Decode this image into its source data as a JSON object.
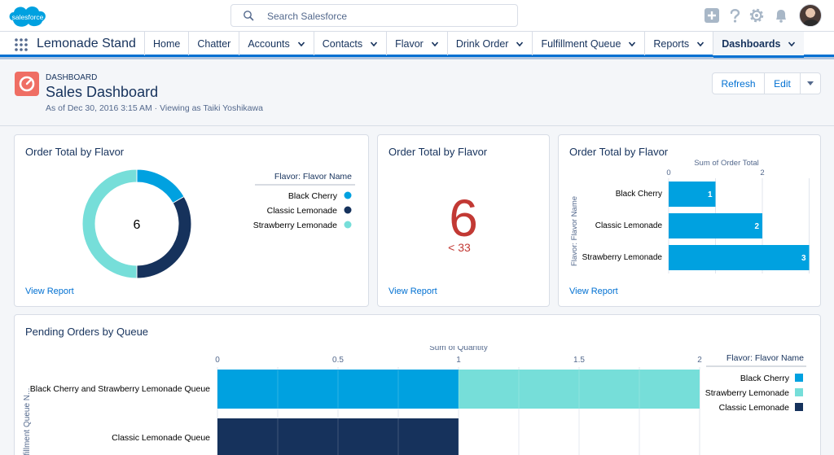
{
  "global_header": {
    "logo_text": "salesforce",
    "search_placeholder": "Search Salesforce"
  },
  "nav": {
    "app_name": "Lemonade Stand",
    "items": [
      {
        "label": "Home",
        "has_menu": false
      },
      {
        "label": "Chatter",
        "has_menu": false
      },
      {
        "label": "Accounts",
        "has_menu": true
      },
      {
        "label": "Contacts",
        "has_menu": true
      },
      {
        "label": "Flavor",
        "has_menu": true
      },
      {
        "label": "Drink Order",
        "has_menu": true
      },
      {
        "label": "Fulfillment Queue",
        "has_menu": true
      },
      {
        "label": "Reports",
        "has_menu": true
      },
      {
        "label": "Dashboards",
        "has_menu": true,
        "active": true
      }
    ]
  },
  "dashboard": {
    "kicker": "DASHBOARD",
    "title": "Sales Dashboard",
    "subtitle": "As of Dec 30, 2016 3:15 AM · Viewing as Taiki Yoshikawa",
    "buttons": {
      "refresh": "Refresh",
      "edit": "Edit"
    }
  },
  "cards": {
    "donut": {
      "title": "Order Total by Flavor",
      "view_report": "View Report"
    },
    "metric": {
      "title": "Order Total by Flavor",
      "view_report": "View Report",
      "value": "6",
      "sub": "< 33"
    },
    "hbar": {
      "title": "Order Total by Flavor",
      "view_report": "View Report"
    },
    "stacked": {
      "title": "Pending Orders by Queue"
    }
  },
  "colors": {
    "black_cherry": "#00a1e0",
    "classic_lemonade": "#16325c",
    "strawberry_lemonade": "#76ded9",
    "metric_red": "#c23934",
    "link": "#0070d2"
  },
  "chart_data": [
    {
      "type": "pie",
      "title": "Order Total by Flavor",
      "center_label": "6",
      "legend_title": "Flavor: Flavor Name",
      "categories": [
        "Black Cherry",
        "Classic Lemonade",
        "Strawberry Lemonade"
      ],
      "values": [
        1,
        2,
        3
      ]
    },
    {
      "type": "bar",
      "orientation": "horizontal",
      "title": "Order Total by Flavor",
      "xlabel": "Sum of Order Total",
      "ylabel": "Flavor: Flavor Name",
      "categories": [
        "Black Cherry",
        "Classic Lemonade",
        "Strawberry Lemonade"
      ],
      "values": [
        1,
        2,
        3
      ],
      "xticks": [
        "0",
        "2"
      ],
      "xlim": [
        0,
        3
      ]
    },
    {
      "type": "bar",
      "orientation": "horizontal",
      "stacked": true,
      "title": "Pending Orders by Queue",
      "xlabel": "Sum of Quantity",
      "ylabel": "Fulfillment Queue N...",
      "legend_title": "Flavor: Flavor Name",
      "legend": [
        "Black Cherry",
        "Strawberry Lemonade",
        "Classic Lemonade"
      ],
      "categories": [
        "Black Cherry and Strawberry Lemonade Queue",
        "Classic Lemonade Queue"
      ],
      "series": [
        {
          "name": "Black Cherry",
          "values": [
            1,
            0
          ]
        },
        {
          "name": "Strawberry Lemonade",
          "values": [
            1,
            0
          ]
        },
        {
          "name": "Classic Lemonade",
          "values": [
            0,
            1
          ]
        }
      ],
      "xticks": [
        "0",
        "0.5",
        "1",
        "1.5",
        "2"
      ],
      "xlim": [
        0,
        2
      ]
    }
  ]
}
